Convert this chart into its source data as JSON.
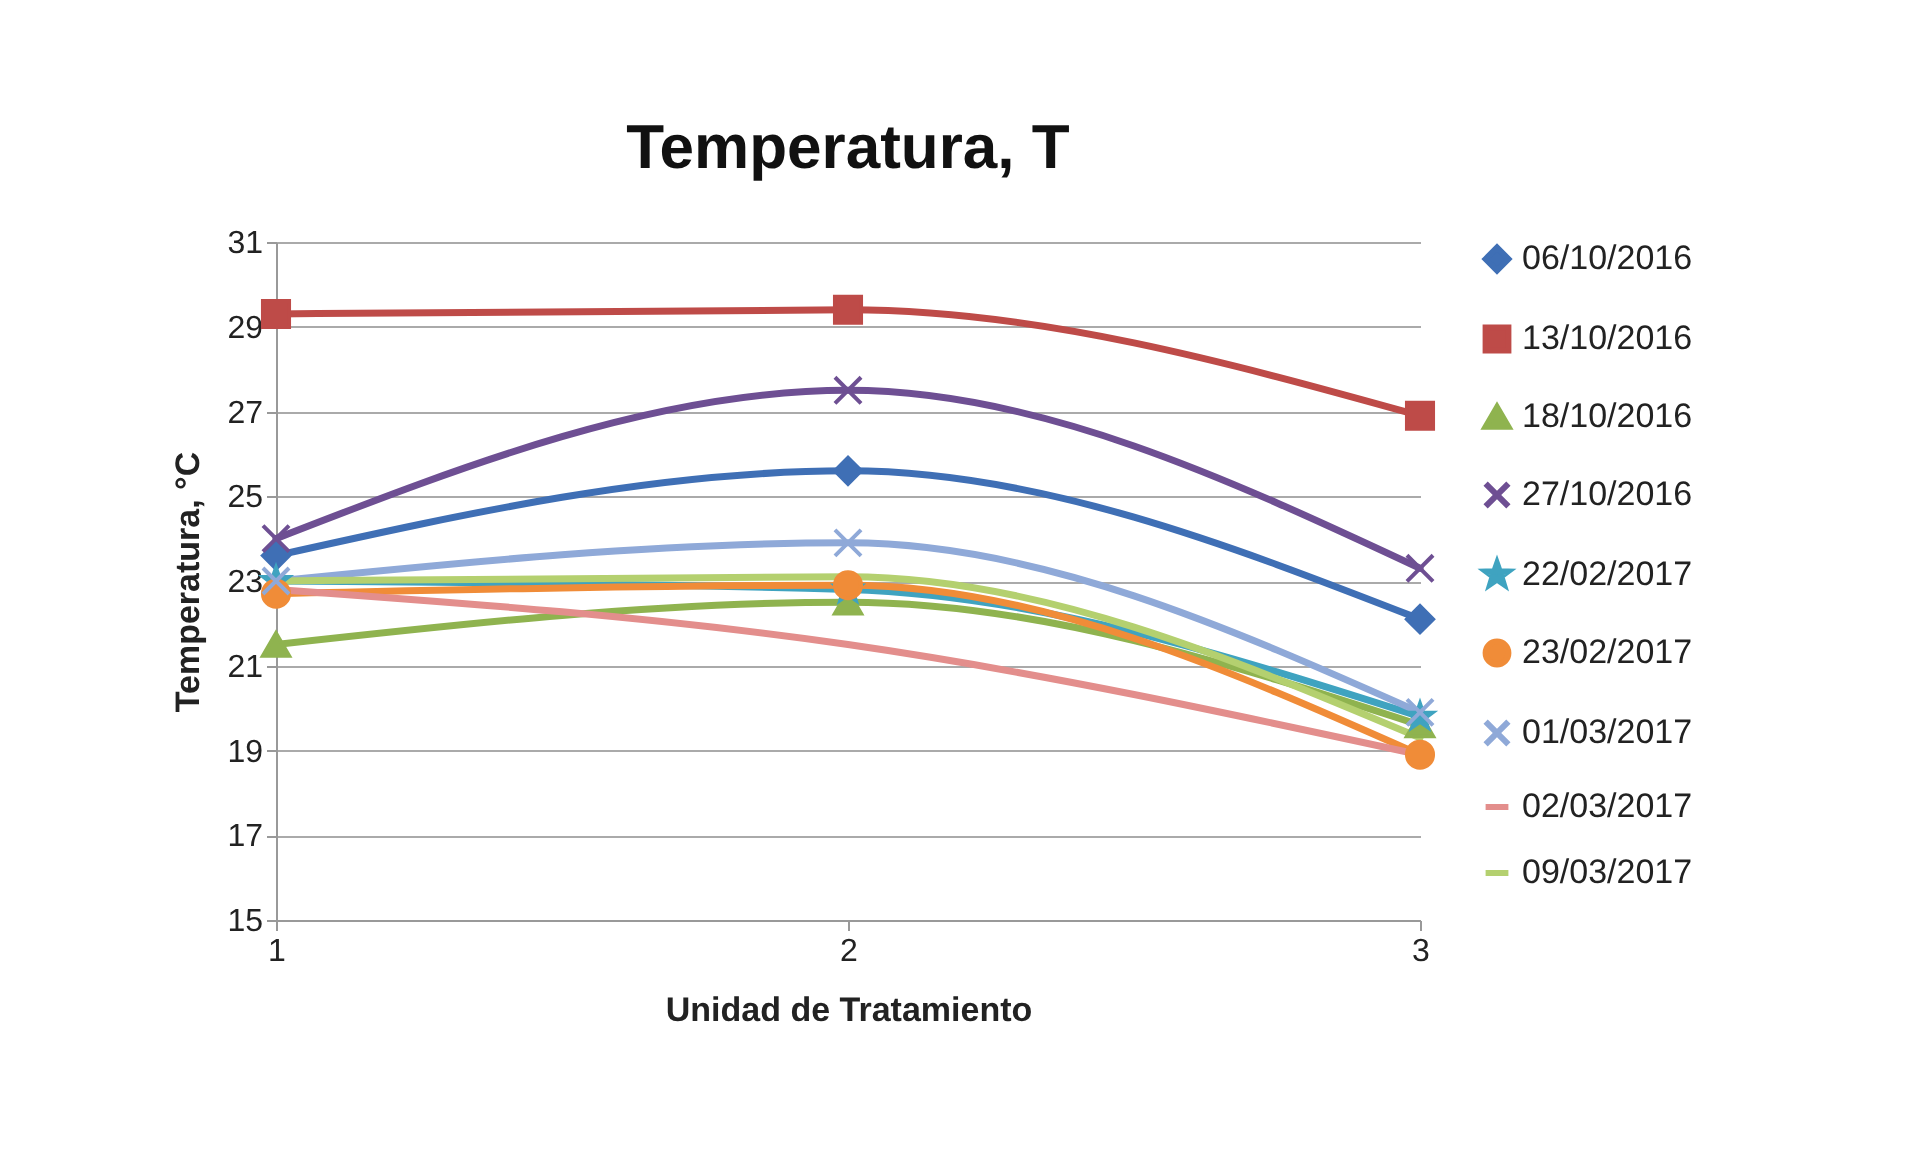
{
  "chart_data": {
    "type": "line",
    "title": "Temperatura, T",
    "xlabel": "Unidad de Tratamiento",
    "ylabel": "Temperatura, °C",
    "x": [
      1,
      2,
      3
    ],
    "xlim": [
      1,
      3
    ],
    "xticks": [
      1,
      2,
      3
    ],
    "ylim": [
      15,
      31
    ],
    "yticks": [
      15,
      17,
      19,
      21,
      23,
      25,
      27,
      29,
      31
    ],
    "grid": "y",
    "legend": "right",
    "series": [
      {
        "name": "06/10/2016",
        "color": "#3f6fb5",
        "marker": "diamond",
        "values": [
          23.6,
          25.6,
          22.1
        ]
      },
      {
        "name": "13/10/2016",
        "color": "#be4b48",
        "marker": "square",
        "values": [
          29.3,
          29.4,
          26.9
        ]
      },
      {
        "name": "18/10/2016",
        "color": "#8fb34f",
        "marker": "triangle",
        "values": [
          21.5,
          22.5,
          19.6
        ]
      },
      {
        "name": "27/10/2016",
        "color": "#6e4f93",
        "marker": "cross",
        "values": [
          24.0,
          27.5,
          23.3
        ]
      },
      {
        "name": "22/02/2017",
        "color": "#3fa3c0",
        "marker": "star",
        "values": [
          23.0,
          22.8,
          19.8
        ]
      },
      {
        "name": "23/02/2017",
        "color": "#f08c38",
        "marker": "circle",
        "values": [
          22.7,
          22.9,
          18.9
        ]
      },
      {
        "name": "01/03/2017",
        "color": "#8fa9d8",
        "marker": "cross",
        "values": [
          23.0,
          23.9,
          19.9
        ]
      },
      {
        "name": "02/03/2017",
        "color": "#e38e8c",
        "marker": "none",
        "values": [
          22.8,
          21.5,
          18.9
        ]
      },
      {
        "name": "09/03/2017",
        "color": "#b4d06f",
        "marker": "none",
        "values": [
          23.0,
          23.1,
          19.3
        ]
      }
    ]
  }
}
